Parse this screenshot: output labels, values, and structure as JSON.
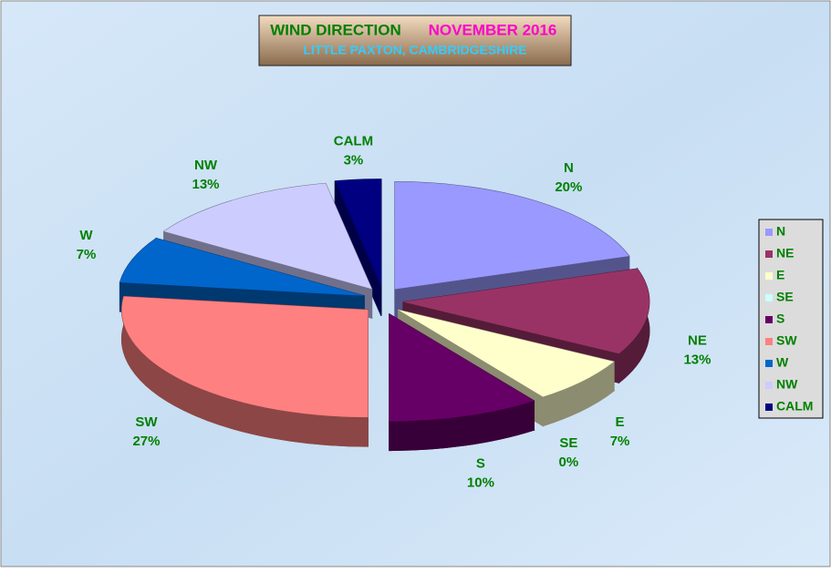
{
  "chart_data": {
    "type": "pie3d",
    "title": "WIND DIRECTION",
    "title_period": "NOVEMBER 2016",
    "subtitle": "LITTLE PAXTON, CAMBRIDGESHIRE",
    "categories": [
      "N",
      "NE",
      "E",
      "SE",
      "S",
      "SW",
      "W",
      "NW",
      "CALM"
    ],
    "values": [
      20,
      13,
      7,
      0,
      10,
      27,
      7,
      13,
      3
    ],
    "value_labels": [
      "20%",
      "13%",
      "7%",
      "0%",
      "10%",
      "27%",
      "7%",
      "13%",
      "3%"
    ],
    "colors": [
      "#9999ff",
      "#993366",
      "#ffffcc",
      "#ccffff",
      "#660066",
      "#ff8080",
      "#0066cc",
      "#ccccff",
      "#000080"
    ],
    "legend": "right"
  }
}
